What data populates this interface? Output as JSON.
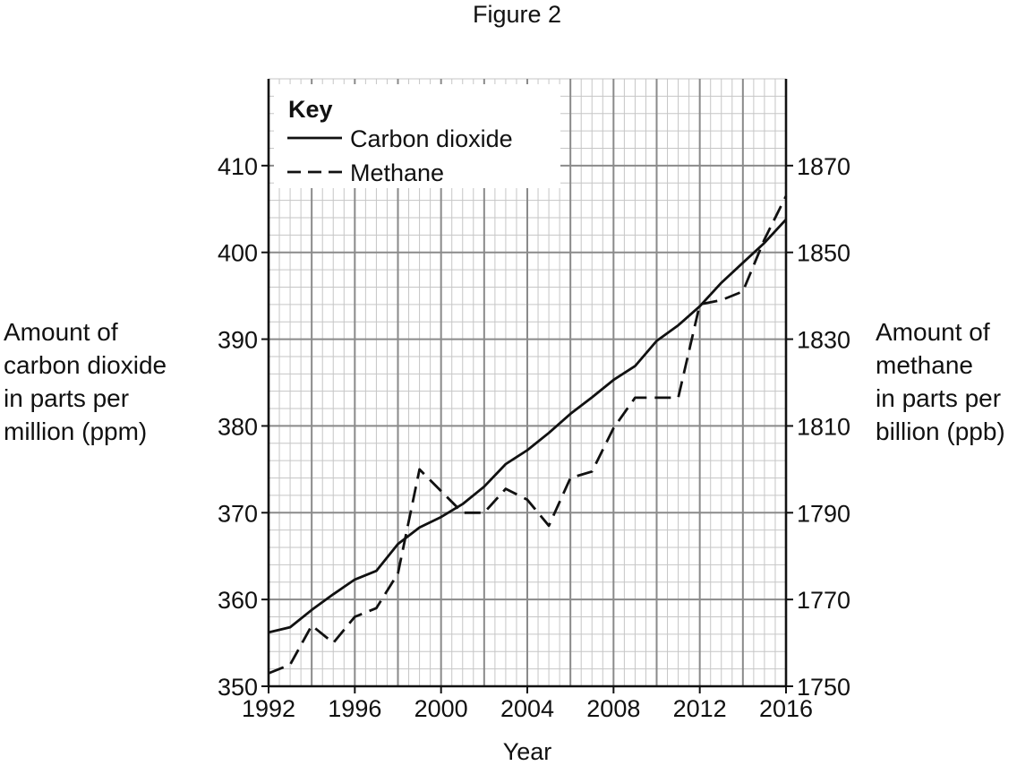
{
  "figure_title": "Figure 2",
  "chart_data": {
    "type": "line",
    "xlabel": "Year",
    "ylabel_left": [
      "Amount of",
      "carbon dioxide",
      "in parts per",
      "million (ppm)"
    ],
    "ylabel_right": [
      "Amount of",
      "methane",
      "in parts per",
      "billion (ppb)"
    ],
    "xlim": [
      1992,
      2016
    ],
    "ylim_left": [
      350,
      420
    ],
    "ylim_right": [
      1750,
      1890
    ],
    "x_ticks": [
      1992,
      1996,
      2000,
      2004,
      2008,
      2012,
      2016
    ],
    "y_ticks_left": [
      350,
      360,
      370,
      380,
      390,
      400,
      410
    ],
    "y_ticks_right": [
      1750,
      1770,
      1790,
      1810,
      1830,
      1850,
      1870
    ],
    "grid": true,
    "legend": {
      "title": "Key",
      "placement": "top-left",
      "entries": [
        {
          "label": "Carbon dioxide",
          "style": "solid"
        },
        {
          "label": "Methane",
          "style": "dashed"
        }
      ]
    },
    "series": [
      {
        "name": "Carbon dioxide",
        "axis": "left",
        "style": "solid",
        "x": [
          1992,
          1993,
          1994,
          1995,
          1996,
          1997,
          1998,
          1999,
          2000,
          2001,
          2002,
          2003,
          2004,
          2005,
          2006,
          2007,
          2008,
          2009,
          2010,
          2011,
          2012,
          2013,
          2014,
          2015,
          2016
        ],
        "values": [
          356.2,
          356.8,
          358.8,
          360.6,
          362.3,
          363.3,
          366.4,
          368.3,
          369.5,
          371,
          373,
          375.6,
          377.2,
          379.2,
          381.4,
          383.3,
          385.3,
          386.9,
          389.8,
          391.6,
          393.8,
          396.5,
          398.8,
          401.1,
          403.8
        ]
      },
      {
        "name": "Methane",
        "axis": "right",
        "style": "dashed",
        "x": [
          1992,
          1993,
          1994,
          1995,
          1996,
          1997,
          1998,
          1999,
          2000,
          2001,
          2002,
          2003,
          2004,
          2005,
          2006,
          2007,
          2008,
          2009,
          2010,
          2011,
          2012,
          2013,
          2014,
          2015,
          2016
        ],
        "values": [
          1753,
          1755,
          1764,
          1760,
          1766,
          1768,
          1776,
          1800,
          1795,
          1790,
          1790,
          1795.5,
          1793,
          1787,
          1798,
          1799.5,
          1809.5,
          1816.5,
          1816.5,
          1816.5,
          1838,
          1839,
          1841,
          1853,
          1863
        ]
      }
    ]
  }
}
